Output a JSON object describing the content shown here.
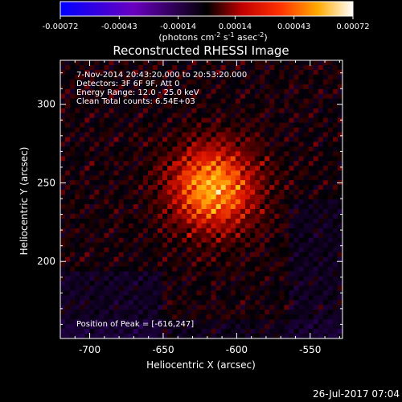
{
  "chart_data": {
    "type": "heatmap",
    "title": "Reconstructed RHESSI Image",
    "xlabel": "Heliocentric X (arcsec)",
    "ylabel": "Heliocentric Y (arcsec)",
    "xlim": [
      -720,
      -528
    ],
    "ylim": [
      151,
      328
    ],
    "xticks": [
      -700,
      -650,
      -600,
      -550
    ],
    "yticks": [
      200,
      250,
      300
    ],
    "colorbar": {
      "ticks": [
        "-0.00072",
        "-0.00043",
        "-0.00014",
        "0.00014",
        "0.00043",
        "0.00072"
      ],
      "unit_prefix": "(photons cm",
      "unit_exp1": "-2",
      "unit_mid": " s",
      "unit_exp2": "-1",
      "unit_mid2": " asec",
      "unit_exp3": "-2",
      "unit_suffix": ")",
      "range": [
        -0.00072,
        0.00072
      ]
    },
    "info": {
      "line1": "7-Nov-2014 20:43:20.000 to 20:53:20.000",
      "line2": "Detectors: 3F 6F 9F, Att 0",
      "line3": "Energy Range: 12.0 - 25.0 keV",
      "line4": "Clean     Total counts: 6.54E+03"
    },
    "peak_label": "Position of Peak = [-616,247]",
    "peak_position": [
      -616,
      247
    ],
    "timestamp": "26-Jul-2017 07:04",
    "colors": {
      "low": "#0000ff",
      "mid_low": "#7a00a0",
      "zero": "#000000",
      "red": "#e01000",
      "orange": "#ff8800",
      "high": "#ffffff"
    }
  }
}
